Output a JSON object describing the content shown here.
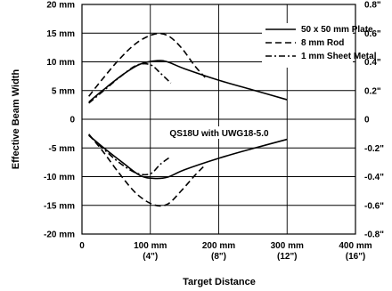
{
  "chart_data": {
    "type": "line",
    "annotation": "QS18U with UWG18-5.0",
    "xlabel": "Target Distance",
    "ylabel": "Effective Beam Width",
    "xlim": [
      0,
      400
    ],
    "ylim": [
      -20,
      20
    ],
    "y2lim": [
      -0.8,
      0.8
    ],
    "grid": true,
    "legend_position": "top-right",
    "x_ticks": [
      {
        "value": 0,
        "label": "0",
        "sub": ""
      },
      {
        "value": 100,
        "label": "100 mm",
        "sub": "(4\")"
      },
      {
        "value": 200,
        "label": "200 mm",
        "sub": "(8\")"
      },
      {
        "value": 300,
        "label": "300 mm",
        "sub": "(12\")"
      },
      {
        "value": 400,
        "label": "400 mm",
        "sub": "(16\")"
      }
    ],
    "y_ticks": [
      {
        "value": 20,
        "label": "20 mm"
      },
      {
        "value": 15,
        "label": "15 mm"
      },
      {
        "value": 10,
        "label": "10 mm"
      },
      {
        "value": 5,
        "label": "5 mm"
      },
      {
        "value": 0,
        "label": "0"
      },
      {
        "value": -5,
        "label": "-5 mm"
      },
      {
        "value": -10,
        "label": "-10 mm"
      },
      {
        "value": -15,
        "label": "-15 mm"
      },
      {
        "value": -20,
        "label": "-20 mm"
      }
    ],
    "y2_ticks": [
      {
        "value": 0.8,
        "label": "0.8\""
      },
      {
        "value": 0.6,
        "label": "0.6\""
      },
      {
        "value": 0.4,
        "label": "0.4\""
      },
      {
        "value": 0.2,
        "label": "0.2\""
      },
      {
        "value": 0,
        "label": "0"
      },
      {
        "value": -0.2,
        "label": "-0.2\""
      },
      {
        "value": -0.4,
        "label": "-0.4\""
      },
      {
        "value": -0.6,
        "label": "-0.6\""
      },
      {
        "value": -0.8,
        "label": "-0.8\""
      }
    ],
    "series": [
      {
        "name": "50 x 50 mm Plate",
        "dash": "solid",
        "upper": [
          [
            10,
            3
          ],
          [
            30,
            5
          ],
          [
            60,
            7.8
          ],
          [
            85,
            9.6
          ],
          [
            110,
            10.2
          ],
          [
            125,
            10
          ],
          [
            150,
            8.8
          ],
          [
            200,
            6.8
          ],
          [
            250,
            5.1
          ],
          [
            300,
            3.4
          ]
        ],
        "lower": [
          [
            10,
            -2.8
          ],
          [
            30,
            -4.8
          ],
          [
            60,
            -7.6
          ],
          [
            85,
            -9.8
          ],
          [
            105,
            -10.3
          ],
          [
            125,
            -10.1
          ],
          [
            150,
            -8.8
          ],
          [
            200,
            -6.8
          ],
          [
            250,
            -5.1
          ],
          [
            300,
            -3.5
          ]
        ]
      },
      {
        "name": "8 mm Rod",
        "dash": "dashed",
        "upper": [
          [
            10,
            4
          ],
          [
            30,
            7
          ],
          [
            55,
            10.5
          ],
          [
            80,
            13.3
          ],
          [
            105,
            14.8
          ],
          [
            125,
            14.6
          ],
          [
            145,
            12.5
          ],
          [
            165,
            9.3
          ],
          [
            180,
            7.3
          ]
        ],
        "lower": [
          [
            10,
            -2.6
          ],
          [
            30,
            -5.5
          ],
          [
            55,
            -9.5
          ],
          [
            80,
            -13
          ],
          [
            105,
            -14.9
          ],
          [
            125,
            -14.8
          ],
          [
            145,
            -12.5
          ],
          [
            165,
            -9.8
          ],
          [
            180,
            -8
          ]
        ]
      },
      {
        "name": "1 mm Sheet Metal",
        "dash": "dash-dot",
        "upper": [
          [
            10,
            2.8
          ],
          [
            30,
            4.8
          ],
          [
            55,
            7.3
          ],
          [
            80,
            9.4
          ],
          [
            100,
            9.5
          ],
          [
            115,
            8
          ],
          [
            130,
            6.3
          ]
        ],
        "lower": [
          [
            10,
            -2.8
          ],
          [
            30,
            -5
          ],
          [
            55,
            -7.6
          ],
          [
            80,
            -9.4
          ],
          [
            100,
            -9.5
          ],
          [
            115,
            -7.8
          ],
          [
            130,
            -6.5
          ]
        ]
      }
    ]
  }
}
